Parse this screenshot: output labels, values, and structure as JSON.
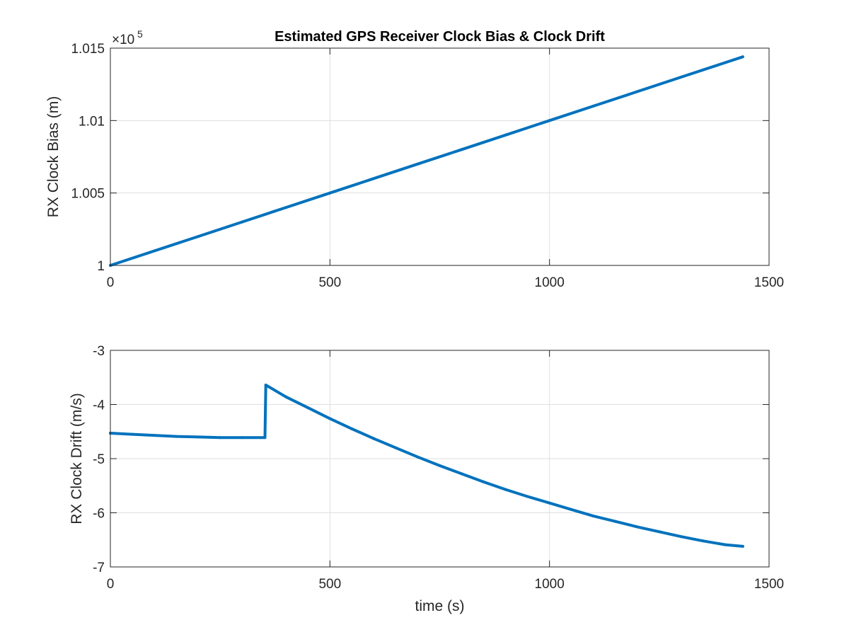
{
  "chart_data": [
    {
      "type": "line",
      "title": "Estimated GPS Receiver Clock Bias & Clock Drift",
      "xlabel": "",
      "ylabel": "RX Clock Bias (m)",
      "xlim": [
        0,
        1500
      ],
      "ylim": [
        100000,
        101500
      ],
      "xticks": [
        0,
        500,
        1000,
        1500
      ],
      "xtick_labels": [
        "0",
        "500",
        "1000",
        "1500"
      ],
      "yticks": [
        100000,
        100500,
        101000,
        101500
      ],
      "ytick_labels": [
        "1",
        "1.005",
        "1.01",
        "1.015"
      ],
      "y_exponent_label": "×10",
      "y_exponent_power": "5",
      "grid": true,
      "color": "#0072BD",
      "series": [
        {
          "x": [
            0,
            100,
            200,
            300,
            400,
            500,
            600,
            700,
            800,
            900,
            1000,
            1100,
            1200,
            1300,
            1400,
            1440
          ],
          "y": [
            100000,
            100100,
            100200,
            100300,
            100400,
            100500,
            100600,
            100700,
            100800,
            100900,
            101000,
            101100,
            101200,
            101300,
            101400,
            101440
          ]
        }
      ]
    },
    {
      "type": "line",
      "title": "",
      "xlabel": "time (s)",
      "ylabel": "RX Clock Drift (m/s)",
      "xlim": [
        0,
        1500
      ],
      "ylim": [
        -7,
        -3
      ],
      "xticks": [
        0,
        500,
        1000,
        1500
      ],
      "xtick_labels": [
        "0",
        "500",
        "1000",
        "1500"
      ],
      "yticks": [
        -7,
        -6,
        -5,
        -4,
        -3
      ],
      "ytick_labels": [
        "-7",
        "-6",
        "-5",
        "-4",
        "-3"
      ],
      "grid": true,
      "color": "#0072BD",
      "series": [
        {
          "x": [
            0,
            50,
            100,
            150,
            200,
            250,
            300,
            352,
            354,
            400,
            450,
            500,
            550,
            600,
            650,
            700,
            750,
            800,
            850,
            900,
            950,
            1000,
            1050,
            1100,
            1150,
            1200,
            1250,
            1300,
            1350,
            1400,
            1440
          ],
          "y": [
            -4.53,
            -4.55,
            -4.57,
            -4.59,
            -4.6,
            -4.61,
            -4.61,
            -4.61,
            -3.64,
            -3.86,
            -4.06,
            -4.26,
            -4.45,
            -4.63,
            -4.8,
            -4.97,
            -5.13,
            -5.28,
            -5.43,
            -5.57,
            -5.7,
            -5.82,
            -5.94,
            -6.06,
            -6.16,
            -6.26,
            -6.35,
            -6.44,
            -6.52,
            -6.59,
            -6.62
          ]
        }
      ]
    }
  ]
}
